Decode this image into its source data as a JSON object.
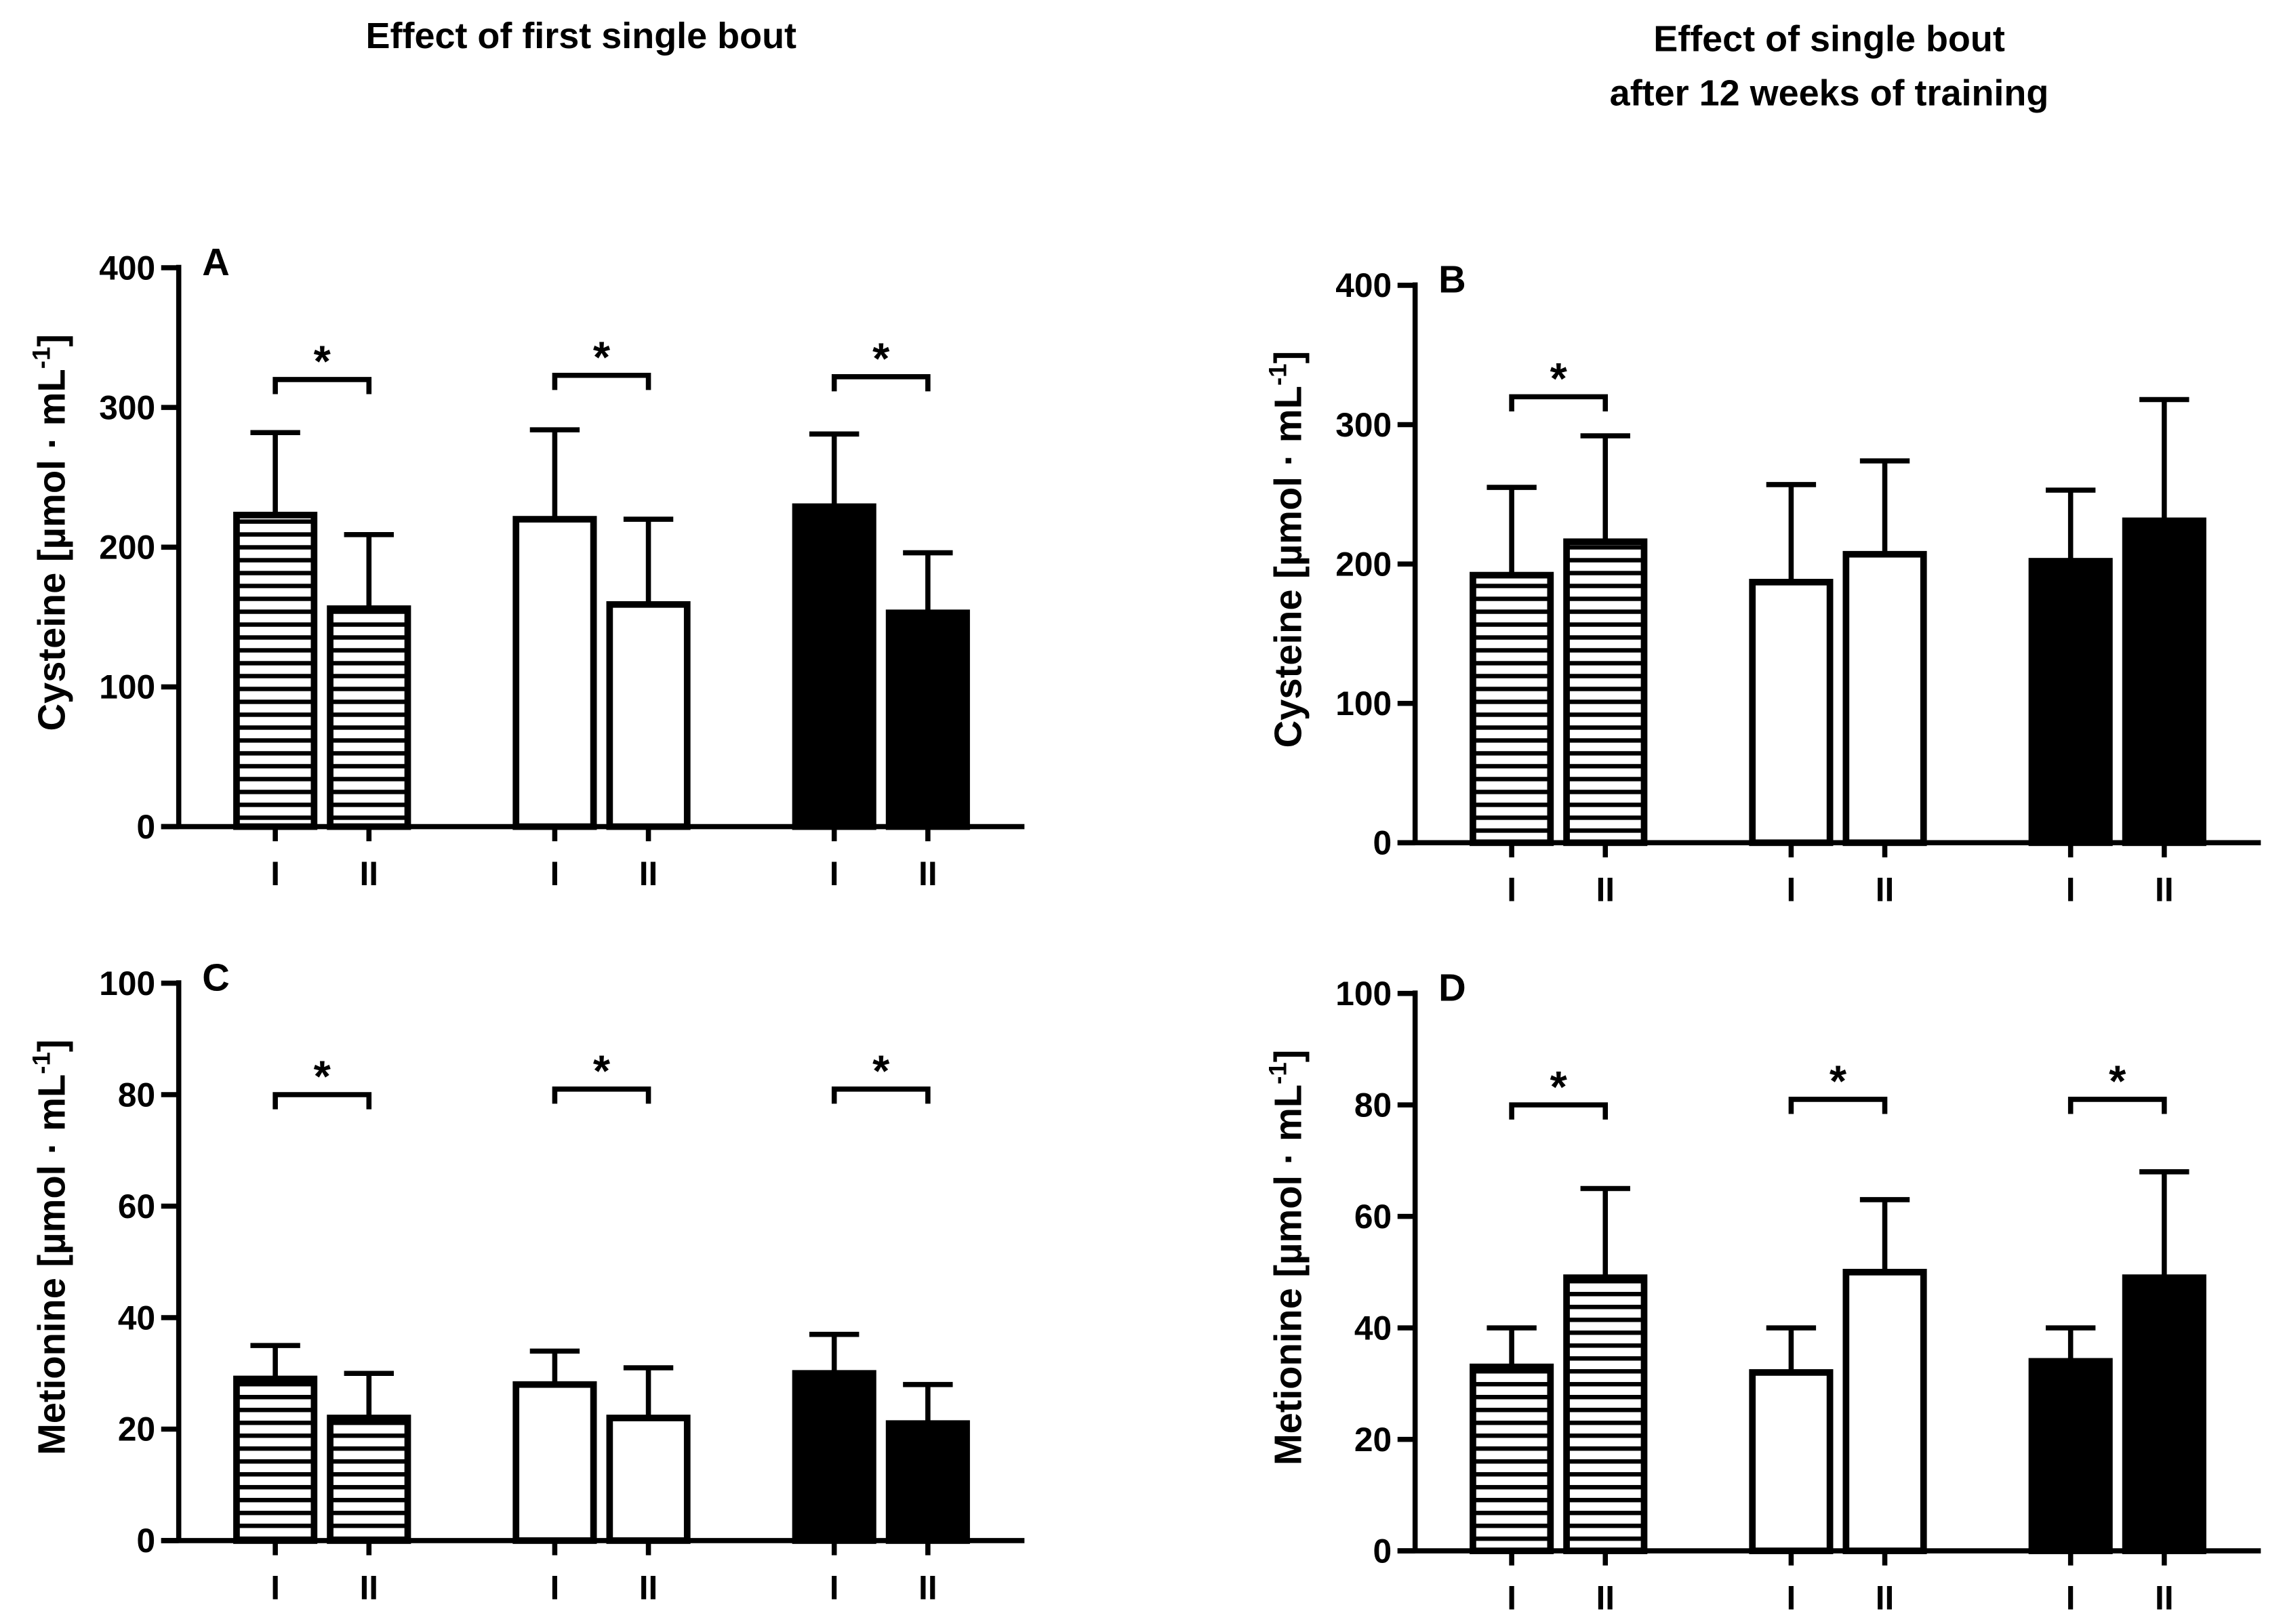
{
  "titles": {
    "left": "Effect of first single bout",
    "right_line1": "Effect of single bout",
    "right_line2": "after 12 weeks of training"
  },
  "colors": {
    "ink": "#000000",
    "background": "#ffffff"
  },
  "chart_data": [
    {
      "type": "bar",
      "panel": "A",
      "ylabel": "Cysteine [µmol · mL-1]",
      "ylim": [
        0,
        400
      ],
      "yticks": [
        "0",
        "100",
        "200",
        "300",
        "400"
      ],
      "ytick_values": [
        0,
        100,
        200,
        300,
        400
      ],
      "categories": [
        "I",
        "II",
        "I",
        "II",
        "I",
        "II"
      ],
      "groups": [
        {
          "fill": "striped",
          "values": [
            223,
            156
          ],
          "errors": [
            282,
            209
          ],
          "significant": true,
          "bracket": 320
        },
        {
          "fill": "white",
          "values": [
            220,
            159
          ],
          "errors": [
            284,
            220
          ],
          "significant": true,
          "bracket": 323
        },
        {
          "fill": "black",
          "values": [
            229,
            153
          ],
          "errors": [
            281,
            196
          ],
          "significant": true,
          "bracket": 322
        }
      ],
      "significance_label": "*"
    },
    {
      "type": "bar",
      "panel": "B",
      "ylabel": "Cysteine [µmol · mL-1]",
      "ylim": [
        0,
        400
      ],
      "yticks": [
        "0",
        "100",
        "200",
        "300",
        "400"
      ],
      "ytick_values": [
        0,
        100,
        200,
        300,
        400
      ],
      "categories": [
        "I",
        "II",
        "I",
        "II",
        "I",
        "II"
      ],
      "groups": [
        {
          "fill": "striped",
          "values": [
            192,
            216
          ],
          "errors": [
            255,
            292
          ],
          "significant": true,
          "bracket": 320
        },
        {
          "fill": "white",
          "values": [
            187,
            207
          ],
          "errors": [
            257,
            274
          ],
          "significant": false
        },
        {
          "fill": "black",
          "values": [
            202,
            231
          ],
          "errors": [
            253,
            318
          ],
          "significant": false
        }
      ],
      "significance_label": "*"
    },
    {
      "type": "bar",
      "panel": "C",
      "ylabel": "Metionine [µmol · mL-1]",
      "ylim": [
        0,
        100
      ],
      "yticks": [
        "0",
        "20",
        "40",
        "60",
        "80",
        "100"
      ],
      "ytick_values": [
        0,
        20,
        40,
        60,
        80,
        100
      ],
      "categories": [
        "I",
        "II",
        "I",
        "II",
        "I",
        "II"
      ],
      "groups": [
        {
          "fill": "striped",
          "values": [
            29,
            22
          ],
          "errors": [
            35,
            30
          ],
          "significant": true,
          "bracket": 80
        },
        {
          "fill": "white",
          "values": [
            28,
            22
          ],
          "errors": [
            34,
            31
          ],
          "significant": true,
          "bracket": 81
        },
        {
          "fill": "black",
          "values": [
            30,
            21
          ],
          "errors": [
            37,
            28
          ],
          "significant": true,
          "bracket": 81
        }
      ],
      "significance_label": "*"
    },
    {
      "type": "bar",
      "panel": "D",
      "ylabel": "Metionine [µmol · mL-1]",
      "ylim": [
        0,
        100
      ],
      "yticks": [
        "0",
        "20",
        "40",
        "60",
        "80",
        "100"
      ],
      "ytick_values": [
        0,
        20,
        40,
        60,
        80,
        100
      ],
      "categories": [
        "I",
        "II",
        "I",
        "II",
        "I",
        "II"
      ],
      "groups": [
        {
          "fill": "striped",
          "values": [
            33,
            49
          ],
          "errors": [
            40,
            65
          ],
          "significant": true,
          "bracket": 80
        },
        {
          "fill": "white",
          "values": [
            32,
            50
          ],
          "errors": [
            40,
            63
          ],
          "significant": true,
          "bracket": 81
        },
        {
          "fill": "black",
          "values": [
            34,
            49
          ],
          "errors": [
            40,
            68
          ],
          "significant": true,
          "bracket": 81
        }
      ],
      "significance_label": "*"
    }
  ]
}
